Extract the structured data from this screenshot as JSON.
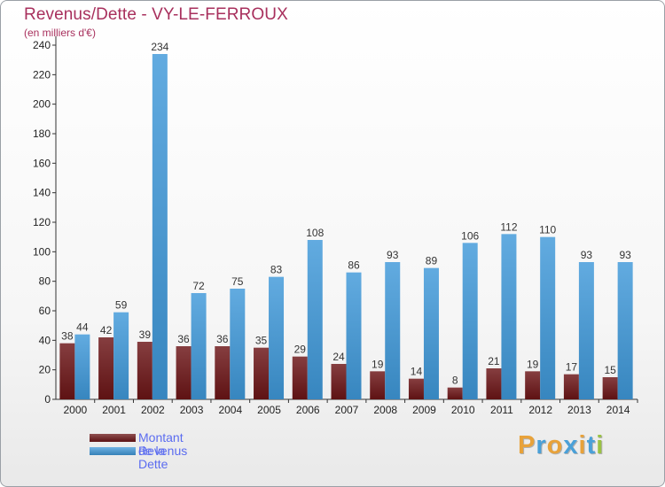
{
  "title": "Revenus/Dette - VY-LE-FERROUX",
  "subtitle": "(en milliers d'€)",
  "legend": [
    {
      "label": "Montant de la Dette",
      "color": "#6b1416"
    },
    {
      "label": "Revenus",
      "color": "#3f98d9"
    }
  ],
  "logo": {
    "text": "Proxiti",
    "colors": [
      "#e8a23a",
      "#4aa0d8",
      "#e8a23a",
      "#4aa0d8",
      "#e8a23a",
      "#4aa0d8",
      "#9ac243"
    ]
  },
  "chart_data": {
    "type": "bar",
    "title": "Revenus/Dette - VY-LE-FERROUX",
    "ylabel": "(en milliers d'€)",
    "xlabel": "",
    "ylim": [
      0,
      240
    ],
    "yticks": [
      0,
      20,
      40,
      60,
      80,
      100,
      120,
      140,
      160,
      180,
      200,
      220,
      240
    ],
    "grid": false,
    "categories": [
      "2000",
      "2001",
      "2002",
      "2003",
      "2004",
      "2005",
      "2006",
      "2007",
      "2008",
      "2009",
      "2010",
      "2011",
      "2012",
      "2013",
      "2014"
    ],
    "series": [
      {
        "name": "Montant de la Dette",
        "color": "#6b1416",
        "values": [
          38,
          42,
          39,
          36,
          36,
          35,
          29,
          24,
          19,
          14,
          8,
          21,
          19,
          17,
          15
        ]
      },
      {
        "name": "Revenus",
        "color": "#3f98d9",
        "values": [
          44,
          59,
          234,
          72,
          75,
          83,
          108,
          86,
          93,
          89,
          106,
          112,
          110,
          93,
          93
        ]
      }
    ]
  }
}
